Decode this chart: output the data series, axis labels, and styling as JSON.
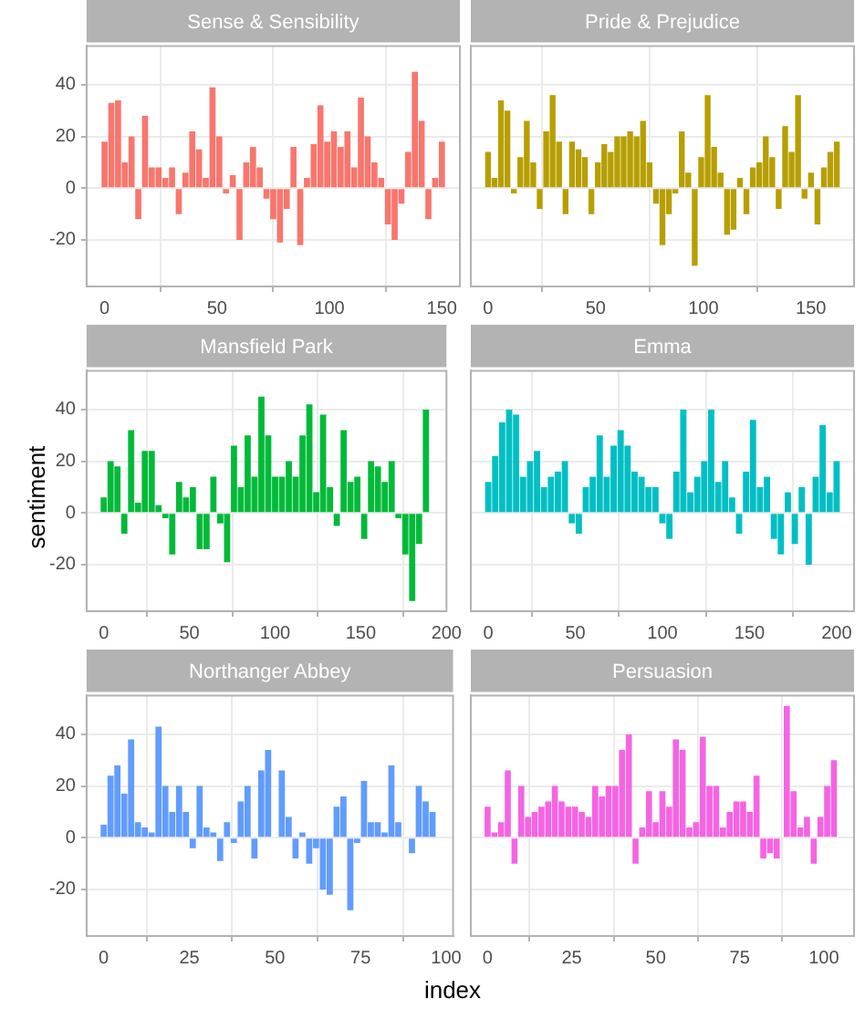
{
  "chart_data": [
    {
      "type": "bar",
      "title": "Sense & Sensibility",
      "color": "#f8766d",
      "grid": true,
      "legend": false,
      "xlim": [
        -8,
        158
      ],
      "xticks": [
        0,
        50,
        100,
        150
      ],
      "ylim": [
        -38,
        55
      ],
      "yticks": [
        -20,
        0,
        20,
        40
      ],
      "x": [
        0,
        3,
        6,
        9,
        12,
        15,
        18,
        21,
        24,
        27,
        30,
        33,
        36,
        39,
        42,
        45,
        48,
        51,
        54,
        57,
        60,
        63,
        66,
        69,
        72,
        75,
        78,
        81,
        84,
        87,
        90,
        93,
        96,
        99,
        102,
        105,
        108,
        111,
        114,
        117,
        120,
        123,
        126,
        129,
        132,
        135,
        138,
        141,
        144,
        147,
        150
      ],
      "values": [
        18,
        33,
        34,
        10,
        20,
        -12,
        28,
        8,
        8,
        4,
        8,
        -10,
        6,
        22,
        15,
        4,
        39,
        20,
        -2,
        5,
        -20,
        10,
        16,
        8,
        -4,
        -12,
        -21,
        -8,
        16,
        -22,
        4,
        17,
        32,
        18,
        22,
        16,
        22,
        8,
        35,
        20,
        10,
        4,
        -14,
        -20,
        -6,
        14,
        45,
        26,
        -12,
        4,
        18
      ]
    },
    {
      "type": "bar",
      "title": "Pride & Prejudice",
      "color": "#b79f00",
      "grid": true,
      "legend": false,
      "tick_labels": "x",
      "xlim": [
        -8,
        170
      ],
      "xticks": [
        0,
        50,
        100,
        150
      ],
      "ylim": [
        -38,
        55
      ],
      "yticks": [
        -20,
        0,
        20,
        40
      ],
      "x": [
        0,
        3,
        6,
        9,
        12,
        15,
        18,
        21,
        24,
        27,
        30,
        33,
        36,
        39,
        42,
        45,
        48,
        51,
        54,
        57,
        60,
        63,
        66,
        69,
        72,
        75,
        78,
        81,
        84,
        87,
        90,
        93,
        96,
        99,
        102,
        105,
        108,
        111,
        114,
        117,
        120,
        123,
        126,
        129,
        132,
        135,
        138,
        141,
        144,
        147,
        150,
        153,
        156,
        159,
        162
      ],
      "values": [
        14,
        4,
        34,
        30,
        -2,
        12,
        26,
        10,
        -8,
        22,
        36,
        18,
        -10,
        18,
        15,
        12,
        -10,
        10,
        17,
        14,
        20,
        20,
        22,
        20,
        26,
        10,
        -6,
        -22,
        -10,
        -2,
        22,
        6,
        -30,
        12,
        36,
        16,
        6,
        -18,
        -16,
        4,
        -10,
        8,
        10,
        20,
        12,
        -8,
        24,
        14,
        36,
        -4,
        6,
        -14,
        8,
        14,
        18
      ]
    },
    {
      "type": "bar",
      "title": "Mansfield Park",
      "ylabel": "sentiment",
      "color": "#00ba38",
      "grid": true,
      "legend": false,
      "xlim": [
        -10,
        200
      ],
      "xticks": [
        0,
        50,
        100,
        150,
        200
      ],
      "ylim": [
        -38,
        55
      ],
      "yticks": [
        -20,
        0,
        20,
        40
      ],
      "x": [
        0,
        4,
        8,
        12,
        16,
        20,
        24,
        28,
        32,
        36,
        40,
        44,
        48,
        52,
        56,
        60,
        64,
        68,
        72,
        76,
        80,
        84,
        88,
        92,
        96,
        100,
        104,
        108,
        112,
        116,
        120,
        124,
        128,
        132,
        136,
        140,
        144,
        148,
        152,
        156,
        160,
        164,
        168,
        172,
        176,
        180,
        184,
        188
      ],
      "values": [
        6,
        20,
        18,
        -8,
        32,
        4,
        24,
        24,
        3,
        -2,
        -16,
        12,
        6,
        10,
        -14,
        -14,
        14,
        -4,
        -19,
        26,
        10,
        30,
        14,
        45,
        30,
        14,
        14,
        20,
        14,
        30,
        42,
        8,
        38,
        10,
        -5,
        32,
        12,
        14,
        -10,
        20,
        18,
        12,
        20,
        -2,
        -16,
        -34,
        -12,
        40
      ]
    },
    {
      "type": "bar",
      "title": "Emma",
      "color": "#00bfc4",
      "grid": true,
      "legend": false,
      "tick_labels": "x",
      "xlim": [
        -10,
        210
      ],
      "xticks": [
        0,
        50,
        100,
        150,
        200
      ],
      "ylim": [
        -38,
        55
      ],
      "yticks": [
        -20,
        0,
        20,
        40
      ],
      "x": [
        0,
        4,
        8,
        12,
        16,
        20,
        24,
        28,
        32,
        36,
        40,
        44,
        48,
        52,
        56,
        60,
        64,
        68,
        72,
        76,
        80,
        84,
        88,
        92,
        96,
        100,
        104,
        108,
        112,
        116,
        120,
        124,
        128,
        132,
        136,
        140,
        144,
        148,
        152,
        156,
        160,
        164,
        168,
        172,
        176,
        180,
        184,
        188,
        192,
        196,
        200
      ],
      "values": [
        12,
        22,
        35,
        40,
        38,
        14,
        20,
        24,
        10,
        14,
        16,
        20,
        -4,
        -8,
        10,
        14,
        30,
        14,
        26,
        32,
        26,
        16,
        14,
        10,
        10,
        -4,
        -10,
        16,
        40,
        8,
        14,
        20,
        40,
        12,
        20,
        6,
        -8,
        16,
        36,
        10,
        14,
        -10,
        -16,
        8,
        -12,
        10,
        -20,
        14,
        34,
        8,
        20
      ]
    },
    {
      "type": "bar",
      "title": "Northanger Abbey",
      "xlabel": "index",
      "color": "#619cff",
      "grid": true,
      "legend": false,
      "xlim": [
        -5,
        102
      ],
      "xticks": [
        0,
        25,
        50,
        75,
        100
      ],
      "ylim": [
        -38,
        55
      ],
      "yticks": [
        -20,
        0,
        20,
        40
      ],
      "x": [
        0,
        2,
        4,
        6,
        8,
        10,
        12,
        14,
        16,
        18,
        20,
        22,
        24,
        26,
        28,
        30,
        32,
        34,
        36,
        38,
        40,
        42,
        44,
        46,
        48,
        50,
        52,
        54,
        56,
        58,
        60,
        62,
        64,
        66,
        68,
        70,
        72,
        74,
        76,
        78,
        80,
        82,
        84,
        86,
        88,
        90,
        92,
        94,
        96
      ],
      "values": [
        5,
        24,
        28,
        17,
        38,
        6,
        4,
        2,
        43,
        20,
        10,
        20,
        10,
        -4,
        20,
        4,
        2,
        -9,
        6,
        -2,
        14,
        20,
        -8,
        26,
        34,
        0,
        26,
        8,
        -8,
        2,
        -10,
        -4,
        -20,
        -22,
        12,
        16,
        -28,
        -2,
        22,
        6,
        6,
        2,
        28,
        6,
        0,
        -6,
        20,
        14,
        10
      ]
    },
    {
      "type": "bar",
      "title": "Persuasion",
      "color": "#f564e3",
      "grid": true,
      "legend": false,
      "tick_labels": "x",
      "xlim": [
        -5,
        109
      ],
      "xticks": [
        0,
        25,
        50,
        75,
        100
      ],
      "ylim": [
        -38,
        55
      ],
      "yticks": [
        -20,
        0,
        20,
        40
      ],
      "x": [
        0,
        2,
        4,
        6,
        8,
        10,
        12,
        14,
        16,
        18,
        20,
        22,
        24,
        26,
        28,
        30,
        32,
        34,
        36,
        38,
        40,
        42,
        44,
        46,
        48,
        50,
        52,
        54,
        56,
        58,
        60,
        62,
        64,
        66,
        68,
        70,
        72,
        74,
        76,
        78,
        80,
        82,
        84,
        86,
        89,
        91,
        93,
        95,
        97,
        99,
        101,
        103
      ],
      "values": [
        12,
        2,
        6,
        26,
        -10,
        20,
        8,
        10,
        12,
        14,
        20,
        14,
        12,
        12,
        10,
        8,
        20,
        16,
        20,
        20,
        34,
        40,
        -10,
        4,
        18,
        6,
        18,
        12,
        38,
        34,
        4,
        6,
        39,
        20,
        20,
        4,
        10,
        14,
        14,
        10,
        24,
        -8,
        -6,
        -8,
        51,
        18,
        4,
        8,
        -10,
        8,
        20,
        30
      ]
    }
  ]
}
